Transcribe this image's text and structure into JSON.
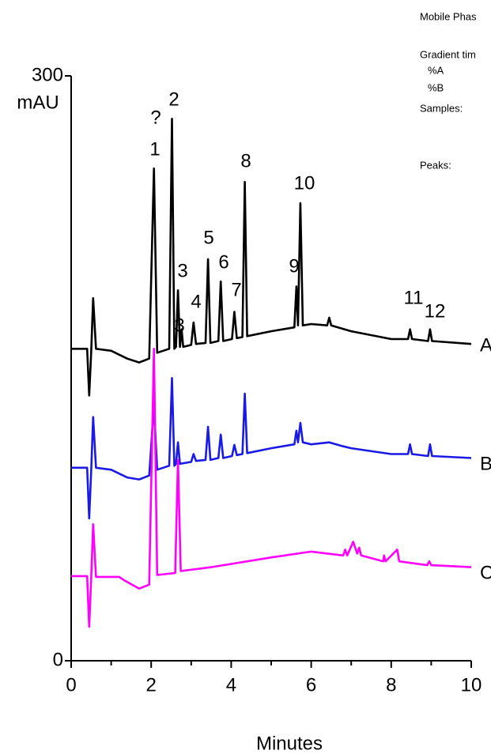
{
  "chart_data": {
    "type": "line",
    "xlabel": "Minutes",
    "yunit": "mAU",
    "xlim": [
      0,
      10
    ],
    "ylim": [
      0,
      300
    ],
    "xticks": [
      0,
      2,
      4,
      6,
      8,
      10
    ],
    "minor_xticks": [
      1,
      3,
      5,
      7,
      9
    ],
    "yticks": [
      0,
      300
    ],
    "series": [
      {
        "name": "A",
        "color": "#000000",
        "x": [
          0,
          0.4,
          0.45,
          0.5,
          0.55,
          0.62,
          1.0,
          1.4,
          1.7,
          1.95,
          2.07,
          2.15,
          2.45,
          2.52,
          2.58,
          2.62,
          2.67,
          2.72,
          2.76,
          2.8,
          3.0,
          3.06,
          3.12,
          3.36,
          3.42,
          3.48,
          3.68,
          3.74,
          3.8,
          4.02,
          4.08,
          4.14,
          4.28,
          4.34,
          4.4,
          5.0,
          5.58,
          5.63,
          5.67,
          5.73,
          5.79,
          6.0,
          6.4,
          6.45,
          6.5,
          7.0,
          8.0,
          8.42,
          8.47,
          8.52,
          8.92,
          8.97,
          9.02,
          10
        ],
        "values": [
          160,
          160,
          136,
          158,
          186,
          160,
          159,
          155,
          153,
          155,
          252.5,
          158,
          160,
          278,
          160,
          161,
          190,
          161,
          170,
          161,
          162,
          173.5,
          162.5,
          163,
          206,
          163,
          164,
          194.5,
          164,
          165,
          179,
          165.5,
          166,
          245.6,
          166.5,
          169,
          171,
          192,
          172,
          234.7,
          172,
          172.7,
          172,
          176,
          172,
          169,
          165,
          165,
          170,
          165,
          164,
          170,
          164,
          162.5
        ]
      },
      {
        "name": "B",
        "color": "#1a1ae6",
        "x": [
          0,
          0.4,
          0.45,
          0.5,
          0.55,
          0.62,
          1.0,
          1.4,
          1.7,
          1.95,
          2.07,
          2.15,
          2.45,
          2.52,
          2.58,
          2.62,
          2.67,
          2.72,
          3.0,
          3.06,
          3.12,
          3.36,
          3.42,
          3.48,
          3.68,
          3.74,
          3.8,
          4.02,
          4.08,
          4.14,
          4.28,
          4.34,
          4.4,
          5.0,
          5.58,
          5.63,
          5.67,
          5.73,
          5.79,
          6.0,
          6.45,
          6.8,
          7.0,
          8.0,
          8.42,
          8.47,
          8.52,
          8.92,
          8.97,
          9.02,
          10
        ],
        "values": [
          99,
          99,
          73,
          97,
          125,
          99,
          98,
          94,
          93,
          95,
          131,
          98,
          100,
          145,
          100,
          101,
          112,
          101,
          102,
          106,
          102.5,
          103,
          120,
          103,
          104,
          116,
          104,
          105,
          110.7,
          105.5,
          106,
          137,
          106.5,
          109,
          111,
          118,
          112,
          122,
          112,
          111,
          112,
          110,
          109,
          106,
          106,
          111,
          106,
          105,
          111,
          105,
          104
        ]
      },
      {
        "name": "C",
        "color": "#ff00ff",
        "x": [
          0,
          0.4,
          0.45,
          0.5,
          0.55,
          0.62,
          1.2,
          1.35,
          1.7,
          1.95,
          2.07,
          2.15,
          2.6,
          2.67,
          2.74,
          3.5,
          5.0,
          6.0,
          6.8,
          6.85,
          6.9,
          7.05,
          7.15,
          7.2,
          7.25,
          7.8,
          7.82,
          7.86,
          8.15,
          8.2,
          8.9,
          8.95,
          9.0,
          10
        ],
        "values": [
          43.4,
          43.4,
          17.4,
          42,
          70,
          43,
          43,
          41,
          37,
          39,
          160,
          44,
          45,
          103,
          46,
          48,
          53,
          56,
          54,
          57,
          54,
          61,
          55,
          58,
          54,
          51,
          54,
          51,
          57,
          51,
          49,
          51,
          49,
          48
        ]
      }
    ],
    "peak_labels": [
      "?",
      "1",
      "2",
      "3",
      "3",
      "4",
      "5",
      "6",
      "7",
      "8",
      "9",
      "10",
      "11",
      "12"
    ],
    "method_notes": [
      "Mobile Phas",
      "Gradient tim",
      "%A",
      "%B",
      "Samples:",
      "Peaks:"
    ]
  }
}
